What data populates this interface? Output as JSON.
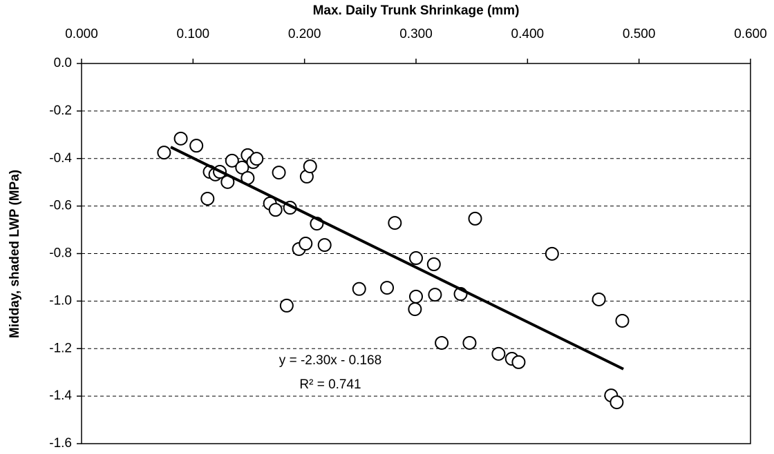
{
  "chart_data": {
    "type": "scatter",
    "x_label": "Max. Daily Trunk Shrinkage (mm)",
    "y_label": "Midday, shaded LWP (MPa)",
    "xlim": [
      0,
      0.6
    ],
    "xticks": [
      {
        "value": 0,
        "label": "0.000"
      },
      {
        "value": 0.1,
        "label": "0.100"
      },
      {
        "value": 0.2,
        "label": "0.200"
      },
      {
        "value": 0.3,
        "label": "0.300"
      },
      {
        "value": 0.4,
        "label": "0.400"
      },
      {
        "value": 0.5,
        "label": "0.500"
      },
      {
        "value": 0.6,
        "label": "0.600"
      }
    ],
    "ylim": [
      -1.6,
      0
    ],
    "yticks": [
      {
        "value": 0,
        "label": "0.0"
      },
      -0.2,
      -0.4,
      -0.6,
      -0.8,
      {
        "value": -1,
        "label": "-1.0"
      },
      -1.2,
      -1.4,
      -1.6
    ],
    "grid": true,
    "series": [
      {
        "color": "#000000",
        "x": [
          0.074,
          0.089,
          0.103,
          0.115,
          0.12,
          0.124,
          0.113,
          0.131,
          0.135,
          0.144,
          0.149,
          0.149,
          0.154,
          0.157,
          0.169,
          0.174,
          0.177,
          0.187,
          0.195,
          0.201,
          0.202,
          0.205,
          0.184,
          0.218,
          0.211,
          0.249,
          0.274,
          0.281,
          0.3,
          0.3,
          0.299,
          0.316,
          0.317,
          0.323,
          0.34,
          0.348,
          0.353,
          0.374,
          0.386,
          0.392,
          0.422,
          0.464,
          0.485,
          0.475,
          0.48
        ],
        "values": [
          -0.375,
          -0.316,
          -0.346,
          -0.456,
          -0.467,
          -0.456,
          -0.569,
          -0.499,
          -0.409,
          -0.438,
          -0.482,
          -0.386,
          -0.415,
          -0.401,
          -0.589,
          -0.616,
          -0.459,
          -0.607,
          -0.781,
          -0.758,
          -0.476,
          -0.433,
          -1.019,
          -0.764,
          -0.674,
          -0.949,
          -0.944,
          -0.671,
          -0.819,
          -0.981,
          -1.034,
          -0.845,
          -0.973,
          -1.176,
          -0.97,
          -1.176,
          -0.653,
          -1.222,
          -1.243,
          -1.257,
          -0.801,
          -0.993,
          -1.083,
          -1.397,
          -1.426
        ]
      }
    ],
    "trendline": {
      "x": [
        0.08,
        0.486
      ],
      "values": [
        -0.352,
        -1.286
      ]
    },
    "annotations": [
      "y = -2.30x - 0.168",
      "R² = 0.741"
    ]
  }
}
